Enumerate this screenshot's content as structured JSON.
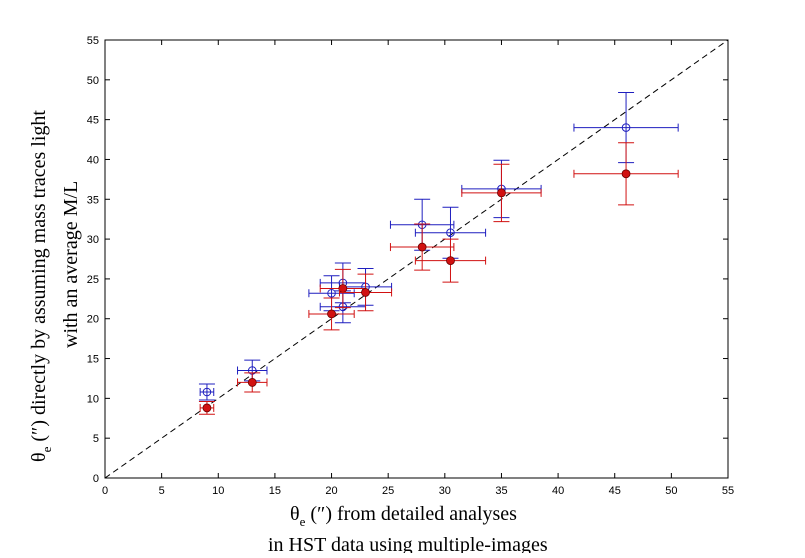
{
  "chart_data": {
    "type": "scatter",
    "xlim": [
      0,
      55
    ],
    "ylim": [
      0,
      55
    ],
    "xticks": [
      0,
      5,
      10,
      15,
      20,
      25,
      30,
      35,
      40,
      45,
      50,
      55
    ],
    "yticks": [
      0,
      5,
      10,
      15,
      20,
      25,
      30,
      35,
      40,
      45,
      50,
      55
    ],
    "xlabel": {
      "symbol": "θ",
      "subscript": "e",
      "line1": " (″) from detailed analyses",
      "line2": "in HST data using multiple-images"
    },
    "ylabel": {
      "symbol": "θ",
      "subscript": "e",
      "line1": " (″) directly by assuming mass traces light",
      "line2": "with an average M/L"
    },
    "reference_line": {
      "label": "y = x",
      "style": "dashed",
      "color": "#000000"
    },
    "series": [
      {
        "name": "open-blue",
        "marker": "open-circle",
        "color": "#1f1fbf",
        "points": [
          {
            "x": 9,
            "y": 10.8,
            "xerr": 0.6,
            "yerr": 1.0
          },
          {
            "x": 13,
            "y": 13.5,
            "xerr": 1.3,
            "yerr": 1.3
          },
          {
            "x": 20,
            "y": 23.2,
            "xerr": 2.0,
            "yerr": 2.2
          },
          {
            "x": 21,
            "y": 24.5,
            "xerr": 2.0,
            "yerr": 2.5
          },
          {
            "x": 21,
            "y": 21.5,
            "xerr": 2.0,
            "yerr": 2.0
          },
          {
            "x": 23,
            "y": 24.0,
            "xerr": 2.3,
            "yerr": 2.3
          },
          {
            "x": 28,
            "y": 31.8,
            "xerr": 2.8,
            "yerr": 3.2
          },
          {
            "x": 30.5,
            "y": 30.8,
            "xerr": 3.1,
            "yerr": 3.2
          },
          {
            "x": 35,
            "y": 36.3,
            "xerr": 3.5,
            "yerr": 3.6
          },
          {
            "x": 46,
            "y": 44.0,
            "xerr": 4.6,
            "yerr": 4.4
          }
        ]
      },
      {
        "name": "filled-red",
        "marker": "filled-circle",
        "color": "#d11111",
        "points": [
          {
            "x": 9,
            "y": 8.8,
            "xerr": 0.6,
            "yerr": 0.8
          },
          {
            "x": 13,
            "y": 12.0,
            "xerr": 1.3,
            "yerr": 1.2
          },
          {
            "x": 20,
            "y": 20.6,
            "xerr": 2.0,
            "yerr": 2.0
          },
          {
            "x": 21,
            "y": 23.8,
            "xerr": 2.0,
            "yerr": 2.4
          },
          {
            "x": 23,
            "y": 23.3,
            "xerr": 2.3,
            "yerr": 2.3
          },
          {
            "x": 28,
            "y": 29.0,
            "xerr": 2.8,
            "yerr": 2.9
          },
          {
            "x": 30.5,
            "y": 27.3,
            "xerr": 3.1,
            "yerr": 2.7
          },
          {
            "x": 35,
            "y": 35.8,
            "xerr": 3.5,
            "yerr": 3.6
          },
          {
            "x": 46,
            "y": 38.2,
            "xerr": 4.6,
            "yerr": 3.9
          }
        ]
      }
    ]
  }
}
